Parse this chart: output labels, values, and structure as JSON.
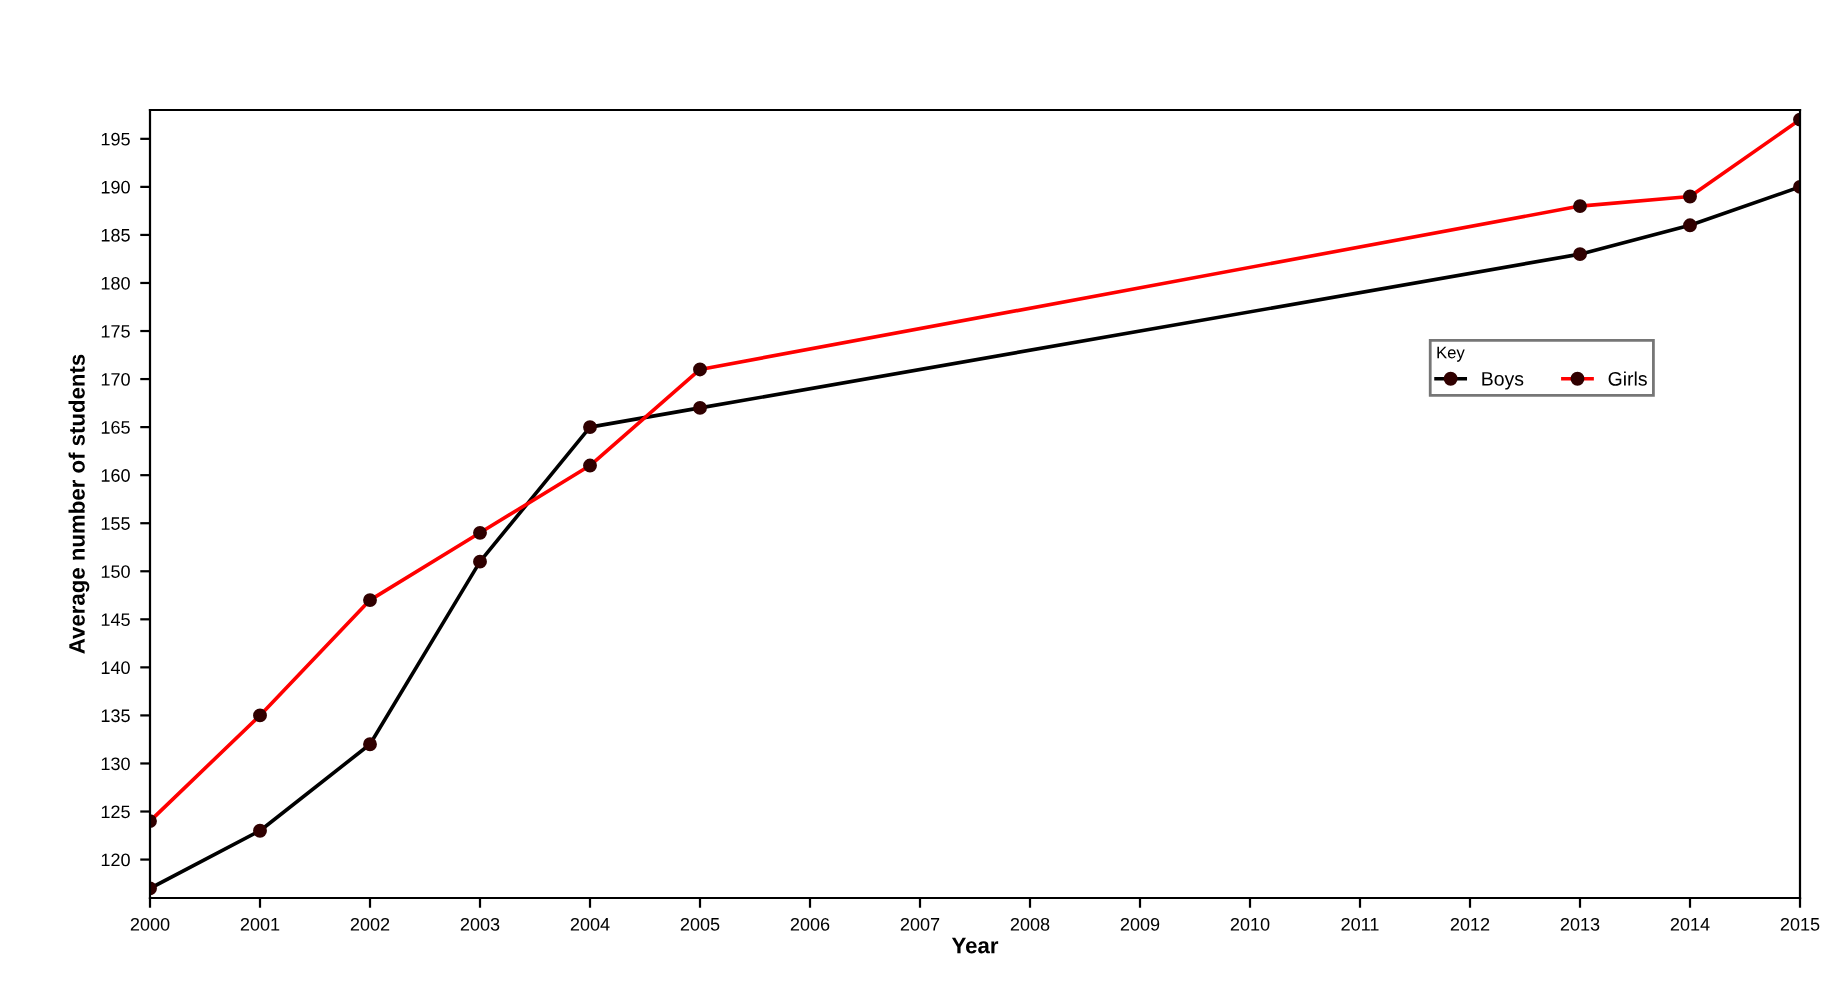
{
  "chart_data": {
    "type": "line",
    "xlabel": "Year",
    "ylabel": "Average number of students",
    "x": [
      2000,
      2001,
      2002,
      2003,
      2004,
      2005,
      2013,
      2014,
      2015
    ],
    "series": [
      {
        "name": "Boys",
        "color": "#000000",
        "values": [
          117,
          123,
          132,
          151,
          165,
          167,
          183,
          186,
          190
        ]
      },
      {
        "name": "Girls",
        "color": "#ff0000",
        "values": [
          124,
          135,
          147,
          154,
          161,
          171,
          188,
          189,
          197
        ]
      }
    ],
    "xlim": [
      2000,
      2015
    ],
    "xticks": [
      2000,
      2001,
      2002,
      2003,
      2004,
      2005,
      2006,
      2007,
      2008,
      2009,
      2010,
      2011,
      2012,
      2013,
      2014,
      2015
    ],
    "ylim": [
      116,
      198
    ],
    "yticks": [
      120,
      125,
      130,
      135,
      140,
      145,
      150,
      155,
      160,
      165,
      170,
      175,
      180,
      185,
      190,
      195
    ],
    "legend": "right",
    "legend_title": "Key",
    "marker": "circle",
    "line_style": "solid",
    "grid": false
  }
}
